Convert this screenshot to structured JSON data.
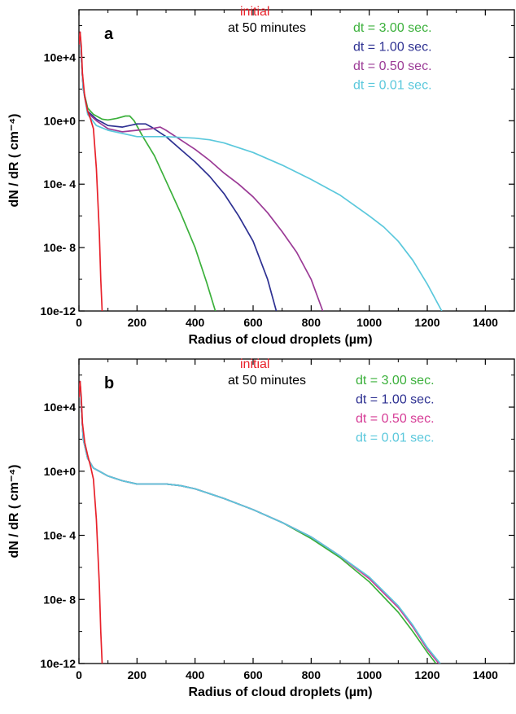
{
  "chart_data": [
    {
      "type": "line",
      "panel_label": "a",
      "xlabel": "Radius of cloud droplets  (µm)",
      "ylabel": "dN / dR ( cm⁻⁴)",
      "xlim": [
        0,
        1500
      ],
      "ylim_log10": [
        -12,
        7
      ],
      "x_scale": "linear",
      "y_scale": "log",
      "x_ticks": [
        0,
        200,
        400,
        600,
        800,
        1000,
        1200,
        1400
      ],
      "x_tick_labels": [
        "0",
        "200",
        "400",
        "600",
        "800",
        "1000",
        "1200",
        "1400"
      ],
      "y_ticks_log10": [
        -12,
        -8,
        -4,
        0,
        4
      ],
      "y_tick_labels": [
        "10e-12",
        "10e- 8",
        "10e- 4",
        "10e+0",
        "10e+4"
      ],
      "grid": false,
      "legend_position": "top-right",
      "annotations": [
        {
          "text": "initial",
          "color": "#e8212a"
        },
        {
          "text": "at 50 minutes",
          "color": "#000000"
        }
      ],
      "series": [
        {
          "name": "initial",
          "color": "#e8212a",
          "x": [
            0,
            4,
            8,
            12,
            20,
            30,
            40,
            50,
            60,
            70,
            75,
            80
          ],
          "y_log10": [
            4.8,
            5.6,
            4.7,
            3.0,
            1.5,
            0.6,
            0.1,
            -0.5,
            -3.0,
            -7.0,
            -10.0,
            -12.0
          ]
        },
        {
          "name": "dt = 3.00 sec.",
          "color": "#3bb03b",
          "x": [
            0,
            4,
            8,
            15,
            30,
            50,
            80,
            100,
            130,
            160,
            175,
            190,
            220,
            260,
            300,
            350,
            400,
            440,
            470
          ],
          "y_log10": [
            4.8,
            5.6,
            4.0,
            2.0,
            0.8,
            0.4,
            0.1,
            0.05,
            0.15,
            0.3,
            0.3,
            0.0,
            -1.0,
            -2.2,
            -3.8,
            -5.8,
            -8.0,
            -10.2,
            -12.0
          ]
        },
        {
          "name": "dt = 1.00 sec.",
          "color": "#2e3192",
          "x": [
            0,
            4,
            8,
            15,
            30,
            60,
            100,
            150,
            200,
            230,
            250,
            300,
            350,
            400,
            450,
            500,
            550,
            600,
            650,
            680
          ],
          "y_log10": [
            4.8,
            5.6,
            4.0,
            2.0,
            0.6,
            0.1,
            -0.3,
            -0.4,
            -0.2,
            -0.2,
            -0.4,
            -1.0,
            -1.8,
            -2.6,
            -3.5,
            -4.6,
            -6.0,
            -7.6,
            -10.0,
            -12.0
          ]
        },
        {
          "name": "dt = 0.50 sec.",
          "color": "#9b3b96",
          "x": [
            0,
            4,
            8,
            15,
            30,
            60,
            100,
            150,
            200,
            250,
            280,
            300,
            350,
            400,
            450,
            500,
            550,
            600,
            650,
            700,
            750,
            800,
            840
          ],
          "y_log10": [
            4.8,
            5.6,
            4.0,
            2.0,
            0.5,
            0.0,
            -0.5,
            -0.7,
            -0.6,
            -0.5,
            -0.4,
            -0.6,
            -1.2,
            -1.8,
            -2.5,
            -3.3,
            -4.0,
            -4.8,
            -5.8,
            -7.0,
            -8.3,
            -10.0,
            -12.0
          ]
        },
        {
          "name": "dt = 0.01 sec.",
          "color": "#5bc8dc",
          "x": [
            0,
            4,
            8,
            15,
            30,
            60,
            100,
            200,
            300,
            400,
            450,
            500,
            600,
            700,
            800,
            900,
            1000,
            1050,
            1100,
            1150,
            1200,
            1250
          ],
          "y_log10": [
            4.8,
            5.6,
            4.0,
            2.0,
            0.4,
            -0.3,
            -0.6,
            -1.0,
            -1.0,
            -1.1,
            -1.2,
            -1.4,
            -2.0,
            -2.8,
            -3.7,
            -4.7,
            -6.0,
            -6.7,
            -7.6,
            -8.8,
            -10.3,
            -12.0
          ]
        }
      ]
    },
    {
      "type": "line",
      "panel_label": "b",
      "xlabel": "Radius of cloud droplets  (µm)",
      "ylabel": "dN / dR ( cm⁻⁴)",
      "xlim": [
        0,
        1500
      ],
      "ylim_log10": [
        -12,
        7
      ],
      "x_scale": "linear",
      "y_scale": "log",
      "x_ticks": [
        0,
        200,
        400,
        600,
        800,
        1000,
        1200,
        1400
      ],
      "x_tick_labels": [
        "0",
        "200",
        "400",
        "600",
        "800",
        "1000",
        "1200",
        "1400"
      ],
      "y_ticks_log10": [
        -12,
        -8,
        -4,
        0,
        4
      ],
      "y_tick_labels": [
        "10e-12",
        "10e- 8",
        "10e- 4",
        "10e+0",
        "10e+4"
      ],
      "grid": false,
      "legend_position": "top-right",
      "annotations": [
        {
          "text": "initial",
          "color": "#e8212a"
        },
        {
          "text": "at 50 minutes",
          "color": "#000000"
        }
      ],
      "series": [
        {
          "name": "initial",
          "color": "#e8212a",
          "x": [
            0,
            4,
            8,
            12,
            20,
            30,
            40,
            50,
            60,
            70,
            75,
            80
          ],
          "y_log10": [
            4.6,
            5.6,
            4.6,
            3.0,
            1.8,
            1.0,
            0.3,
            -0.5,
            -3.0,
            -7.0,
            -10.0,
            -12.0
          ]
        },
        {
          "name": "dt = 3.00 sec.",
          "color": "#3bb03b",
          "x": [
            0,
            4,
            8,
            15,
            30,
            50,
            100,
            150,
            200,
            250,
            300,
            350,
            400,
            500,
            600,
            700,
            800,
            900,
            1000,
            1100,
            1150,
            1200,
            1230
          ],
          "y_log10": [
            4.6,
            5.6,
            4.0,
            2.0,
            0.8,
            0.2,
            -0.3,
            -0.6,
            -0.8,
            -0.8,
            -0.8,
            -0.9,
            -1.1,
            -1.7,
            -2.4,
            -3.2,
            -4.2,
            -5.4,
            -6.9,
            -8.8,
            -10.0,
            -11.3,
            -12.0
          ]
        },
        {
          "name": "dt = 1.00 sec.",
          "color": "#2e3192",
          "x": [
            0,
            4,
            8,
            15,
            30,
            50,
            100,
            150,
            200,
            250,
            300,
            350,
            400,
            500,
            600,
            700,
            800,
            900,
            1000,
            1100,
            1150,
            1200,
            1240
          ],
          "y_log10": [
            4.6,
            5.6,
            4.0,
            2.0,
            0.8,
            0.2,
            -0.3,
            -0.6,
            -0.8,
            -0.8,
            -0.8,
            -0.9,
            -1.1,
            -1.7,
            -2.4,
            -3.2,
            -4.1,
            -5.3,
            -6.7,
            -8.5,
            -9.7,
            -11.1,
            -12.0
          ]
        },
        {
          "name": "dt = 0.50 sec.",
          "color": "#d63c96",
          "x": [
            0,
            4,
            8,
            15,
            30,
            50,
            100,
            150,
            200,
            250,
            300,
            350,
            400,
            500,
            600,
            700,
            800,
            900,
            1000,
            1100,
            1150,
            1200,
            1240
          ],
          "y_log10": [
            4.6,
            5.6,
            4.0,
            2.0,
            0.8,
            0.2,
            -0.3,
            -0.6,
            -0.8,
            -0.8,
            -0.8,
            -0.9,
            -1.1,
            -1.7,
            -2.4,
            -3.2,
            -4.1,
            -5.3,
            -6.7,
            -8.5,
            -9.7,
            -11.1,
            -12.0
          ]
        },
        {
          "name": "dt = 0.01 sec.",
          "color": "#5bc8dc",
          "x": [
            0,
            4,
            8,
            15,
            30,
            50,
            100,
            150,
            200,
            250,
            300,
            350,
            400,
            500,
            600,
            700,
            800,
            900,
            1000,
            1100,
            1150,
            1200,
            1245
          ],
          "y_log10": [
            4.6,
            5.6,
            4.0,
            2.0,
            0.8,
            0.2,
            -0.3,
            -0.6,
            -0.8,
            -0.8,
            -0.8,
            -0.9,
            -1.1,
            -1.7,
            -2.4,
            -3.2,
            -4.1,
            -5.3,
            -6.6,
            -8.4,
            -9.6,
            -11.0,
            -12.0
          ]
        }
      ]
    }
  ]
}
